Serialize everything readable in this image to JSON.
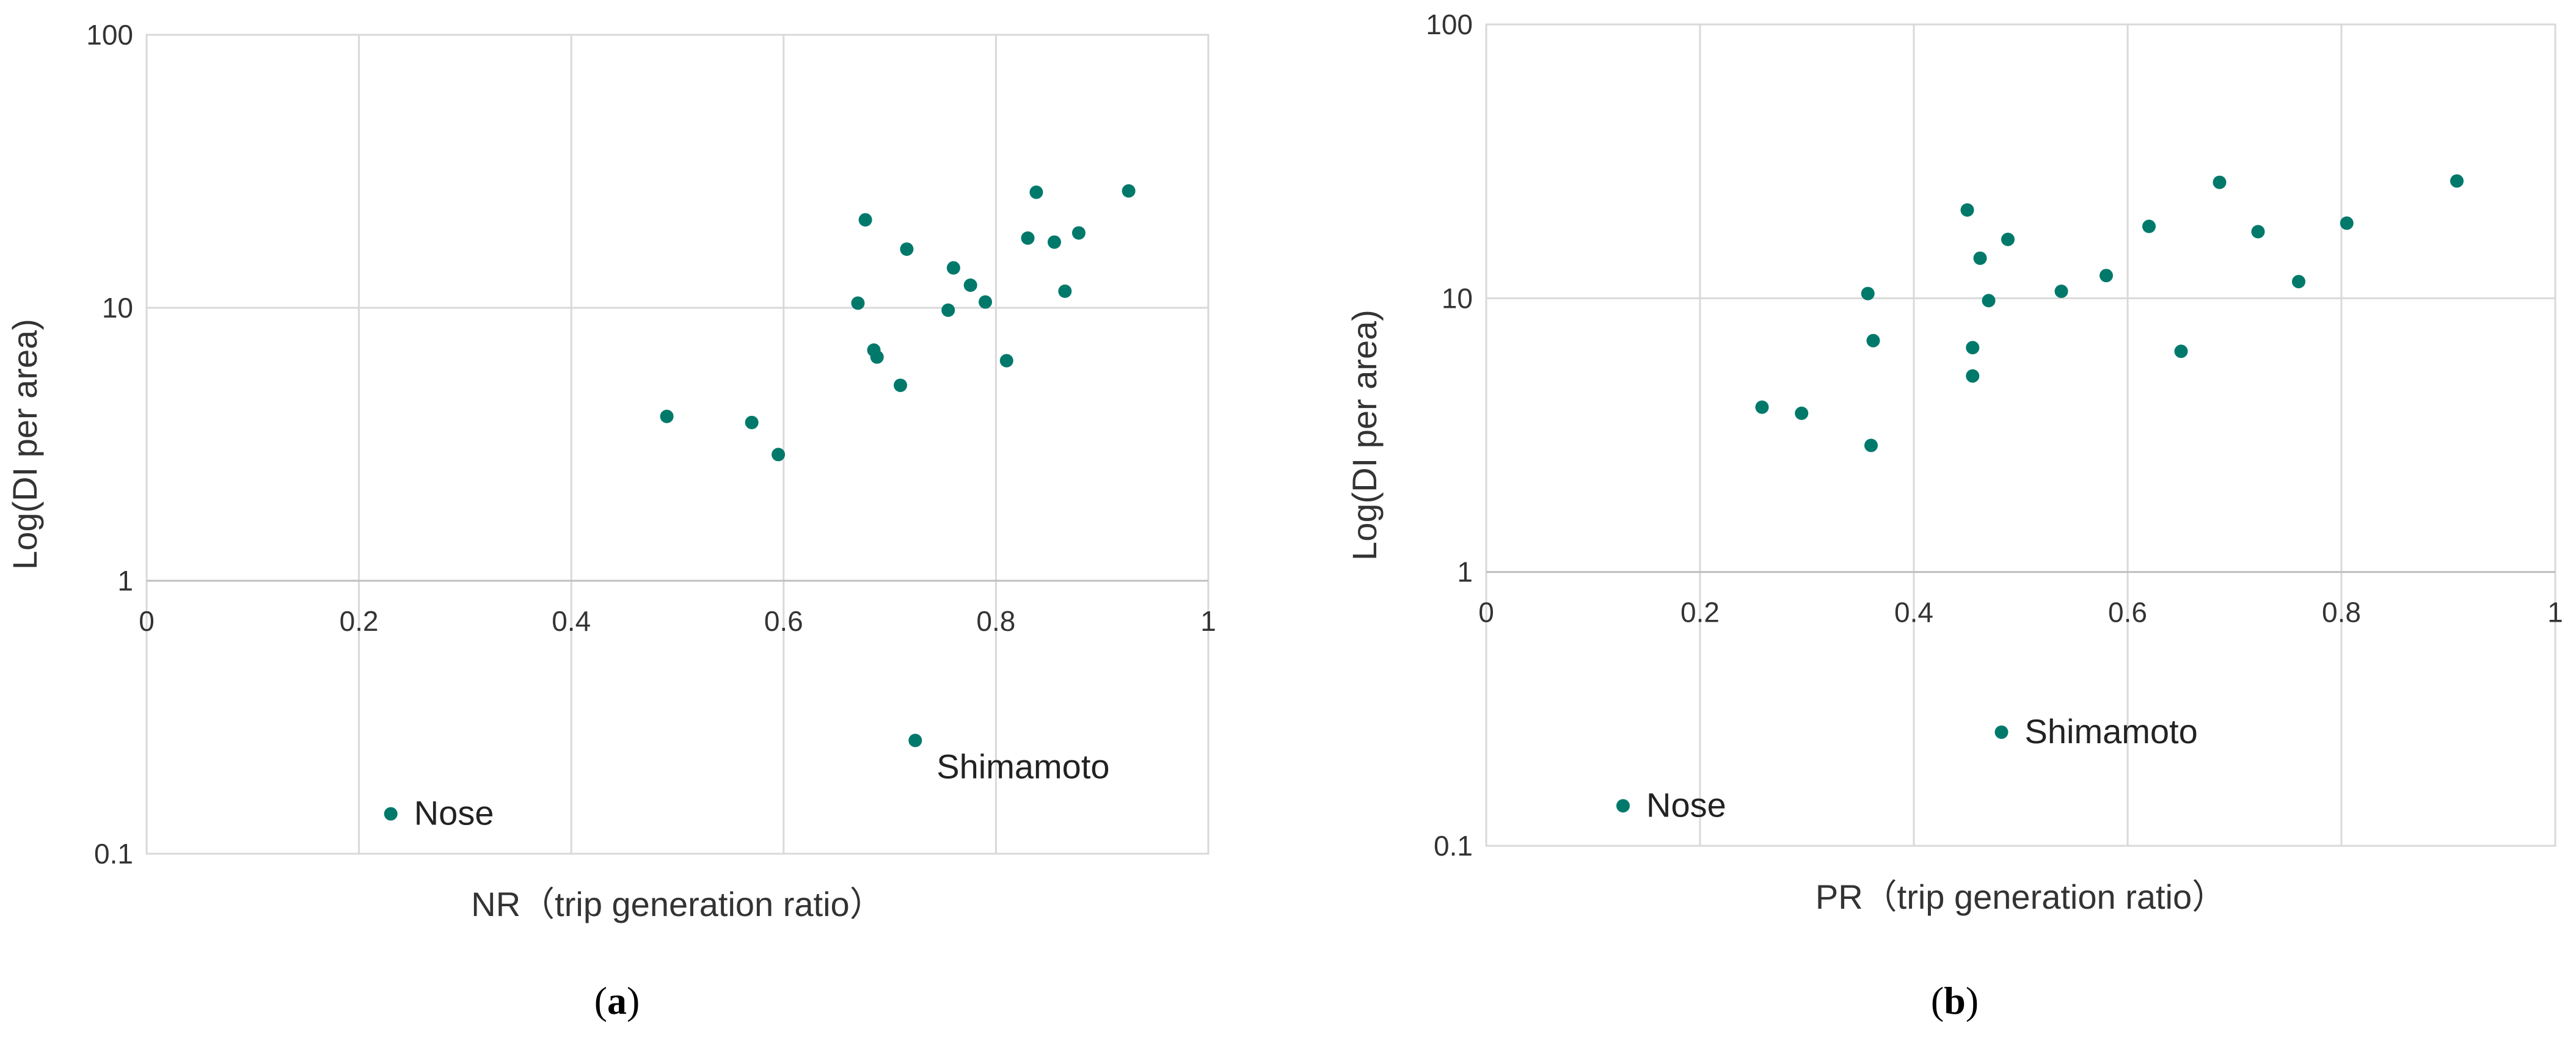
{
  "colors": {
    "point": "#00796b",
    "grid": "#d9d9d9",
    "text": "#333333"
  },
  "chart_data": [
    {
      "type": "scatter",
      "panel_label": "a",
      "xlabel": "NR（trip generation ratio）",
      "ylabel": "Log(DI per area)",
      "xlim": [
        0,
        1
      ],
      "ylim": [
        0.1,
        100
      ],
      "yscale": "log",
      "x_ticks": [
        "0",
        "0.2",
        "0.4",
        "0.6",
        "0.8",
        "1"
      ],
      "y_ticks": [
        "0.1",
        "1",
        "10",
        "100"
      ],
      "grid": true,
      "points": [
        {
          "x": 0.49,
          "y": 4.0
        },
        {
          "x": 0.57,
          "y": 3.8
        },
        {
          "x": 0.595,
          "y": 2.9
        },
        {
          "x": 0.67,
          "y": 10.4
        },
        {
          "x": 0.677,
          "y": 21.0
        },
        {
          "x": 0.685,
          "y": 7.0
        },
        {
          "x": 0.688,
          "y": 6.6
        },
        {
          "x": 0.71,
          "y": 5.2
        },
        {
          "x": 0.716,
          "y": 16.4
        },
        {
          "x": 0.755,
          "y": 9.8
        },
        {
          "x": 0.76,
          "y": 14.0
        },
        {
          "x": 0.776,
          "y": 12.1
        },
        {
          "x": 0.79,
          "y": 10.5
        },
        {
          "x": 0.81,
          "y": 6.4
        },
        {
          "x": 0.83,
          "y": 18.0
        },
        {
          "x": 0.838,
          "y": 26.5
        },
        {
          "x": 0.855,
          "y": 17.4
        },
        {
          "x": 0.865,
          "y": 11.5
        },
        {
          "x": 0.878,
          "y": 18.8
        },
        {
          "x": 0.925,
          "y": 26.8
        },
        {
          "x": 0.724,
          "y": 0.26,
          "label": "Shimamoto"
        },
        {
          "x": 0.23,
          "y": 0.14,
          "label": "Nose"
        }
      ]
    },
    {
      "type": "scatter",
      "panel_label": "b",
      "xlabel": "PR（trip generation ratio）",
      "ylabel": "Log(DI per area)",
      "xlim": [
        0,
        1
      ],
      "ylim": [
        0.1,
        100
      ],
      "yscale": "log",
      "x_ticks": [
        "0",
        "0.2",
        "0.4",
        "0.6",
        "0.8",
        "1"
      ],
      "y_ticks": [
        "0.1",
        "1",
        "10",
        "100"
      ],
      "grid": true,
      "points": [
        {
          "x": 0.258,
          "y": 4.0
        },
        {
          "x": 0.295,
          "y": 3.8
        },
        {
          "x": 0.357,
          "y": 10.4
        },
        {
          "x": 0.36,
          "y": 2.9
        },
        {
          "x": 0.362,
          "y": 7.0
        },
        {
          "x": 0.45,
          "y": 21.0
        },
        {
          "x": 0.455,
          "y": 6.6
        },
        {
          "x": 0.455,
          "y": 5.2
        },
        {
          "x": 0.462,
          "y": 14.0
        },
        {
          "x": 0.47,
          "y": 9.8
        },
        {
          "x": 0.488,
          "y": 16.4
        },
        {
          "x": 0.538,
          "y": 10.6
        },
        {
          "x": 0.58,
          "y": 12.1
        },
        {
          "x": 0.62,
          "y": 18.3
        },
        {
          "x": 0.65,
          "y": 6.4
        },
        {
          "x": 0.686,
          "y": 26.5
        },
        {
          "x": 0.722,
          "y": 17.5
        },
        {
          "x": 0.76,
          "y": 11.5
        },
        {
          "x": 0.805,
          "y": 18.8
        },
        {
          "x": 0.908,
          "y": 26.8
        },
        {
          "x": 0.482,
          "y": 0.26,
          "label": "Shimamoto"
        },
        {
          "x": 0.128,
          "y": 0.14,
          "label": "Nose"
        }
      ]
    }
  ]
}
